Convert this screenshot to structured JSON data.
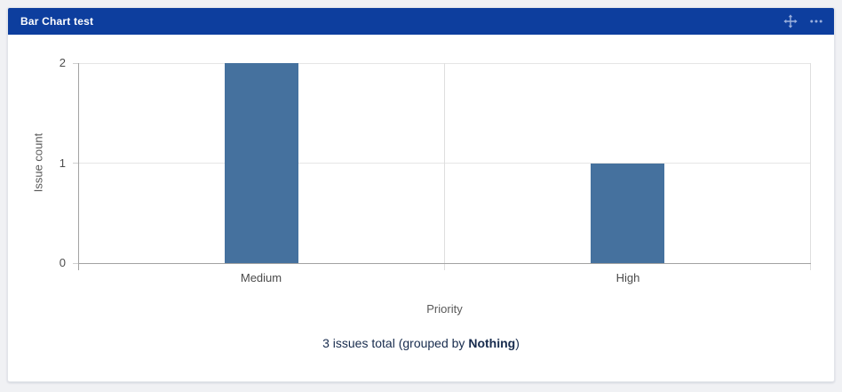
{
  "window": {
    "background_color": "#f0f1f4"
  },
  "header": {
    "title": "Bar Chart test",
    "background_color": "#0d3e9e",
    "icon_color": "#9bb0dd",
    "icons": [
      {
        "name": "move-icon"
      },
      {
        "name": "more-icon"
      }
    ]
  },
  "chart_data": {
    "type": "bar",
    "categories": [
      "Medium",
      "High"
    ],
    "values": [
      2,
      1
    ],
    "title": "",
    "xlabel": "Priority",
    "ylabel": "Issue count",
    "ylim": [
      0,
      2
    ],
    "yticks": [
      0,
      1,
      2
    ],
    "bar_color": "#45719E",
    "grid": true,
    "legend": false
  },
  "footer": {
    "text_prefix": "3 issues total (grouped by ",
    "grouped_by": "Nothing",
    "text_suffix": ")"
  }
}
